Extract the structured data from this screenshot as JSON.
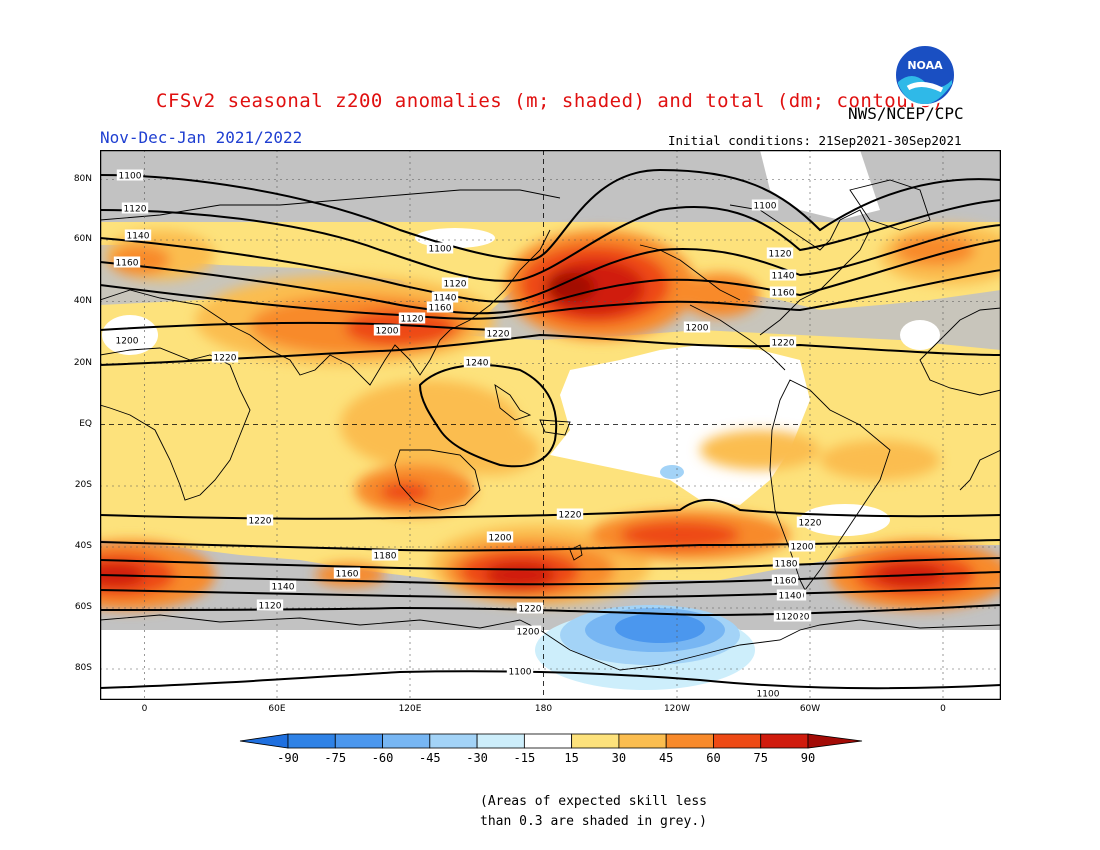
{
  "title": "CFSv2 seasonal z200 anomalies (m; shaded) and total (dm; contours)",
  "agency": "NWS/NCEP/CPC",
  "period": "Nov-Dec-Jan 2021/2022",
  "initial_conditions": "Initial conditions: 21Sep2021-30Sep2021",
  "logo_text": "NOAA",
  "map": {
    "lat_ticks": [
      "80N",
      "60N",
      "40N",
      "20N",
      "EQ",
      "20S",
      "40S",
      "60S",
      "80S"
    ],
    "lon_ticks": [
      "0",
      "60E",
      "120E",
      "180",
      "120W",
      "60W",
      "0"
    ],
    "contour_labels": [
      "1100",
      "1120",
      "1140",
      "1160",
      "1200",
      "1220",
      "1100",
      "1120",
      "1140",
      "1160",
      "1120",
      "1200",
      "1220",
      "1240",
      "1100",
      "1120",
      "1140",
      "1160",
      "1200",
      "1220",
      "1220",
      "1220",
      "1200",
      "1180",
      "1160",
      "1140",
      "1120",
      "1220",
      "1200",
      "1140",
      "1120",
      "1100",
      "1220",
      "1200",
      "1180",
      "1160",
      "1140",
      "1120",
      "1100"
    ]
  },
  "colorbar": {
    "labels": [
      "-90",
      "-75",
      "-60",
      "-45",
      "-30",
      "-15",
      "15",
      "30",
      "45",
      "60",
      "75",
      "90"
    ],
    "colors": [
      "#1e6fdf",
      "#2f82e6",
      "#4b97ee",
      "#77b6f3",
      "#a3d3f7",
      "#cdeefb",
      "#ffffff",
      "#fde27c",
      "#fbbd4f",
      "#f88a2b",
      "#ee4a15",
      "#d01b0d",
      "#a30b06"
    ]
  },
  "note": {
    "line1": "(Areas of expected skill less",
    "line2": "than 0.3 are shaded in grey.)"
  }
}
